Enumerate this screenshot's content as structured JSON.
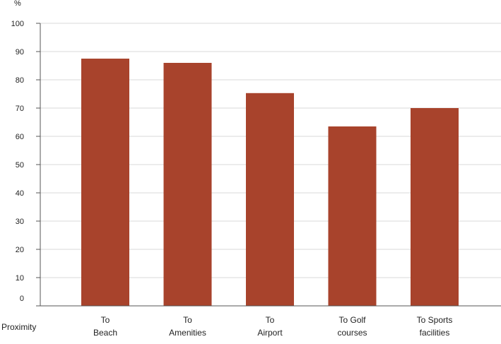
{
  "chart_data": {
    "type": "bar",
    "unit_label": "%",
    "xlabel": "Proximity",
    "categories": [
      [
        "To",
        "Beach"
      ],
      [
        "To",
        "Amenities"
      ],
      [
        "To",
        "Airport"
      ],
      [
        "To Golf",
        "courses"
      ],
      [
        "To Sports",
        "facilities"
      ]
    ],
    "values": [
      87.5,
      86,
      75.3,
      63.5,
      70
    ],
    "ylim": [
      0,
      100
    ],
    "yticks": [
      0,
      10,
      20,
      30,
      40,
      50,
      60,
      70,
      80,
      90,
      100
    ],
    "grid": true,
    "bar_color": "#a8432c",
    "grid_color": "#d9d9d9",
    "axis_color": "#555555"
  }
}
